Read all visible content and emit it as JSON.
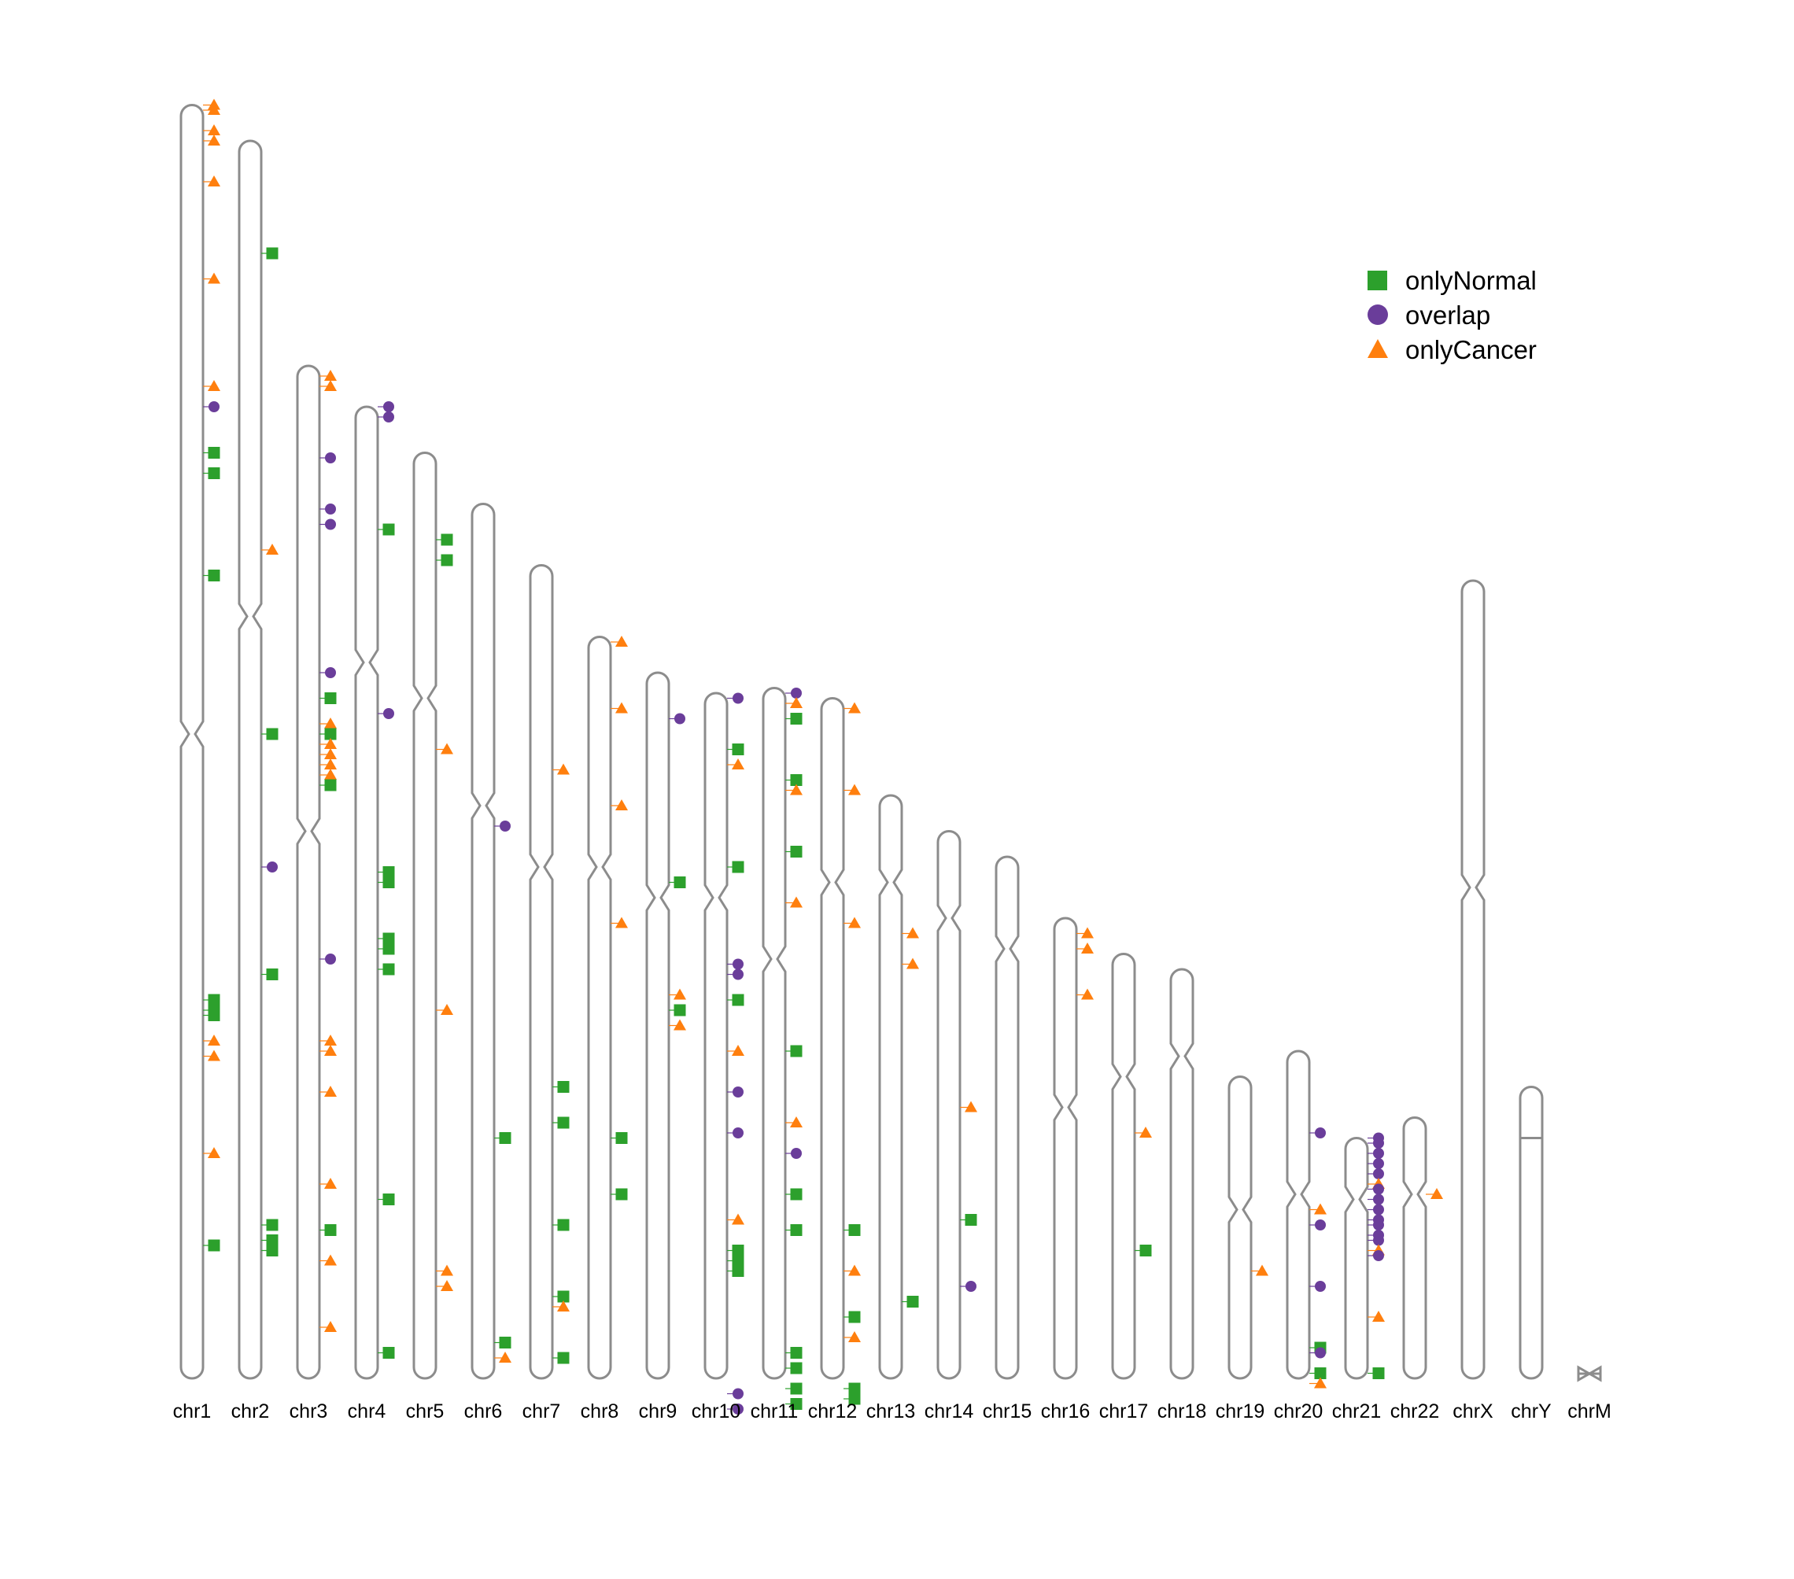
{
  "chart_data": {
    "type": "scatter",
    "title": "",
    "xlabel": "",
    "ylabel": "",
    "legend_position": "top-right",
    "colors": {
      "onlyNormal": "#2ca02c",
      "overlap": "#6a3d9a",
      "onlyCancer": "#ff7f0e",
      "outline": "#8c8c8c"
    },
    "series": [
      {
        "name": "onlyNormal",
        "marker": "square"
      },
      {
        "name": "overlap",
        "marker": "circle"
      },
      {
        "name": "onlyCancer",
        "marker": "triangle"
      }
    ],
    "chromosomes": [
      {
        "name": "chr1",
        "length_mb": 249,
        "centromere_mb": 123
      },
      {
        "name": "chr2",
        "length_mb": 242,
        "centromere_mb": 93
      },
      {
        "name": "chr3",
        "length_mb": 198,
        "centromere_mb": 91
      },
      {
        "name": "chr4",
        "length_mb": 190,
        "centromere_mb": 50
      },
      {
        "name": "chr5",
        "length_mb": 181,
        "centromere_mb": 48
      },
      {
        "name": "chr6",
        "length_mb": 171,
        "centromere_mb": 59
      },
      {
        "name": "chr7",
        "length_mb": 159,
        "centromere_mb": 59
      },
      {
        "name": "chr8",
        "length_mb": 145,
        "centromere_mb": 45
      },
      {
        "name": "chr9",
        "length_mb": 138,
        "centromere_mb": 44
      },
      {
        "name": "chr10",
        "length_mb": 134,
        "centromere_mb": 40
      },
      {
        "name": "chr11",
        "length_mb": 135,
        "centromere_mb": 53
      },
      {
        "name": "chr12",
        "length_mb": 133,
        "centromere_mb": 36
      },
      {
        "name": "chr13",
        "length_mb": 114,
        "centromere_mb": 17
      },
      {
        "name": "chr14",
        "length_mb": 107,
        "centromere_mb": 17
      },
      {
        "name": "chr15",
        "length_mb": 102,
        "centromere_mb": 18
      },
      {
        "name": "chr16",
        "length_mb": 90,
        "centromere_mb": 37
      },
      {
        "name": "chr17",
        "length_mb": 83,
        "centromere_mb": 24
      },
      {
        "name": "chr18",
        "length_mb": 80,
        "centromere_mb": 17
      },
      {
        "name": "chr19",
        "length_mb": 59,
        "centromere_mb": 26
      },
      {
        "name": "chr20",
        "length_mb": 64,
        "centromere_mb": 28
      },
      {
        "name": "chr21",
        "length_mb": 47,
        "centromere_mb": 12
      },
      {
        "name": "chr22",
        "length_mb": 51,
        "centromere_mb": 15
      },
      {
        "name": "chrX",
        "length_mb": 156,
        "centromere_mb": 60
      },
      {
        "name": "chrY",
        "length_mb": 57,
        "centromere_mb": 10
      },
      {
        "name": "chrM",
        "length_mb": 0.0166,
        "centromere_mb": 0
      }
    ],
    "points": {
      "chr1": [
        [
          "onlyCancer",
          0
        ],
        [
          "onlyCancer",
          1
        ],
        [
          "onlyCancer",
          5
        ],
        [
          "onlyCancer",
          7
        ],
        [
          "onlyCancer",
          15
        ],
        [
          "onlyCancer",
          34
        ],
        [
          "onlyCancer",
          55
        ],
        [
          "overlap",
          59
        ],
        [
          "onlyNormal",
          68
        ],
        [
          "onlyNormal",
          72
        ],
        [
          "onlyNormal",
          92
        ],
        [
          "onlyNormal",
          175
        ],
        [
          "onlyNormal",
          177
        ],
        [
          "onlyNormal",
          178
        ],
        [
          "onlyCancer",
          183
        ],
        [
          "onlyCancer",
          186
        ],
        [
          "onlyCancer",
          205
        ],
        [
          "onlyNormal",
          223
        ]
      ],
      "chr2": [
        [
          "onlyNormal",
          22
        ],
        [
          "onlyCancer",
          80
        ],
        [
          "onlyNormal",
          116
        ],
        [
          "overlap",
          142
        ],
        [
          "onlyNormal",
          163
        ],
        [
          "onlyNormal",
          212
        ],
        [
          "onlyNormal",
          215
        ],
        [
          "onlyNormal",
          217
        ]
      ],
      "chr3": [
        [
          "onlyCancer",
          2
        ],
        [
          "onlyCancer",
          4
        ],
        [
          "overlap",
          18
        ],
        [
          "overlap",
          28
        ],
        [
          "overlap",
          31
        ],
        [
          "overlap",
          60
        ],
        [
          "onlyNormal",
          65
        ],
        [
          "onlyCancer",
          70
        ],
        [
          "onlyNormal",
          72
        ],
        [
          "onlyCancer",
          74
        ],
        [
          "onlyCancer",
          76
        ],
        [
          "onlyCancer",
          78
        ],
        [
          "onlyCancer",
          80
        ],
        [
          "onlyNormal",
          82
        ],
        [
          "overlap",
          116
        ],
        [
          "onlyCancer",
          132
        ],
        [
          "onlyCancer",
          134
        ],
        [
          "onlyCancer",
          142
        ],
        [
          "onlyCancer",
          160
        ],
        [
          "onlyNormal",
          169
        ],
        [
          "onlyCancer",
          175
        ],
        [
          "onlyCancer",
          188
        ]
      ],
      "chr4": [
        [
          "overlap",
          0
        ],
        [
          "overlap",
          2
        ],
        [
          "onlyNormal",
          24
        ],
        [
          "overlap",
          60
        ],
        [
          "onlyNormal",
          91
        ],
        [
          "onlyNormal",
          93
        ],
        [
          "onlyNormal",
          104
        ],
        [
          "onlyNormal",
          106
        ],
        [
          "onlyNormal",
          110
        ],
        [
          "onlyNormal",
          155
        ],
        [
          "onlyNormal",
          185
        ]
      ],
      "chr5": [
        [
          "onlyNormal",
          17
        ],
        [
          "onlyNormal",
          21
        ],
        [
          "onlyCancer",
          58
        ],
        [
          "onlyCancer",
          109
        ],
        [
          "onlyCancer",
          160
        ],
        [
          "onlyCancer",
          163
        ]
      ],
      "chr6": [
        [
          "overlap",
          63
        ],
        [
          "onlyNormal",
          124
        ],
        [
          "onlyNormal",
          164
        ],
        [
          "onlyCancer",
          167
        ]
      ],
      "chr7": [
        [
          "onlyCancer",
          40
        ],
        [
          "onlyNormal",
          102
        ],
        [
          "onlyNormal",
          109
        ],
        [
          "onlyNormal",
          129
        ],
        [
          "onlyNormal",
          143
        ],
        [
          "onlyCancer",
          145
        ],
        [
          "onlyNormal",
          155
        ]
      ],
      "chr8": [
        [
          "onlyCancer",
          1
        ],
        [
          "onlyCancer",
          14
        ],
        [
          "onlyCancer",
          33
        ],
        [
          "onlyCancer",
          56
        ],
        [
          "onlyNormal",
          98
        ],
        [
          "onlyNormal",
          109
        ]
      ],
      "chr9": [
        [
          "overlap",
          9
        ],
        [
          "onlyNormal",
          41
        ],
        [
          "onlyCancer",
          63
        ],
        [
          "onlyNormal",
          66
        ],
        [
          "onlyCancer",
          69
        ]
      ],
      "chr10": [
        [
          "overlap",
          1
        ],
        [
          "onlyNormal",
          11
        ],
        [
          "onlyCancer",
          14
        ],
        [
          "onlyNormal",
          34
        ],
        [
          "overlap",
          53
        ],
        [
          "overlap",
          55
        ],
        [
          "onlyNormal",
          60
        ],
        [
          "onlyCancer",
          70
        ],
        [
          "overlap",
          78
        ],
        [
          "overlap",
          86
        ],
        [
          "onlyCancer",
          103
        ],
        [
          "onlyNormal",
          109
        ],
        [
          "onlyNormal",
          111
        ],
        [
          "onlyNormal",
          113
        ],
        [
          "overlap",
          137
        ],
        [
          "overlap",
          140
        ]
      ],
      "chr11": [
        [
          "overlap",
          1
        ],
        [
          "onlyCancer",
          3
        ],
        [
          "onlyNormal",
          6
        ],
        [
          "onlyNormal",
          18
        ],
        [
          "onlyCancer",
          20
        ],
        [
          "onlyNormal",
          32
        ],
        [
          "onlyCancer",
          42
        ],
        [
          "onlyNormal",
          71
        ],
        [
          "onlyCancer",
          85
        ],
        [
          "overlap",
          91
        ],
        [
          "onlyNormal",
          99
        ],
        [
          "onlyNormal",
          106
        ],
        [
          "onlyNormal",
          130
        ],
        [
          "onlyNormal",
          133
        ],
        [
          "onlyNormal",
          137
        ],
        [
          "onlyNormal",
          140
        ]
      ],
      "chr12": [
        [
          "onlyCancer",
          2
        ],
        [
          "onlyCancer",
          18
        ],
        [
          "onlyCancer",
          44
        ],
        [
          "onlyNormal",
          104
        ],
        [
          "onlyCancer",
          112
        ],
        [
          "onlyNormal",
          121
        ],
        [
          "onlyCancer",
          125
        ],
        [
          "onlyNormal",
          135
        ],
        [
          "onlyNormal",
          137
        ]
      ],
      "chr13": [
        [
          "onlyCancer",
          27
        ],
        [
          "onlyCancer",
          33
        ],
        [
          "onlyNormal",
          99
        ]
      ],
      "chr14": [
        [
          "onlyCancer",
          54
        ],
        [
          "onlyNormal",
          76
        ],
        [
          "overlap",
          89
        ]
      ],
      "chr15": [],
      "chr16": [
        [
          "onlyCancer",
          3
        ],
        [
          "onlyCancer",
          6
        ],
        [
          "onlyCancer",
          15
        ]
      ],
      "chr17": [
        [
          "onlyCancer",
          35
        ],
        [
          "onlyNormal",
          58
        ]
      ],
      "chr18": [],
      "chr19": [
        [
          "onlyCancer",
          38
        ]
      ],
      "chr20": [
        [
          "overlap",
          16
        ],
        [
          "onlyCancer",
          31
        ],
        [
          "overlap",
          34
        ],
        [
          "overlap",
          46
        ],
        [
          "onlyNormal",
          58
        ],
        [
          "overlap",
          59
        ],
        [
          "onlyNormal",
          63
        ],
        [
          "onlyCancer",
          65
        ]
      ],
      "chr21": [
        [
          "overlap",
          0
        ],
        [
          "overlap",
          1
        ],
        [
          "overlap",
          3
        ],
        [
          "overlap",
          5
        ],
        [
          "overlap",
          7
        ],
        [
          "onlyCancer",
          9
        ],
        [
          "overlap",
          10
        ],
        [
          "overlap",
          12
        ],
        [
          "overlap",
          14
        ],
        [
          "overlap",
          16
        ],
        [
          "overlap",
          17
        ],
        [
          "overlap",
          19
        ],
        [
          "overlap",
          20
        ],
        [
          "onlyCancer",
          22
        ],
        [
          "overlap",
          23
        ],
        [
          "onlyCancer",
          35
        ],
        [
          "onlyNormal",
          46
        ]
      ],
      "chr22": [
        [
          "onlyCancer",
          15
        ]
      ],
      "chrX": [],
      "chrY": [],
      "chrM": []
    }
  }
}
